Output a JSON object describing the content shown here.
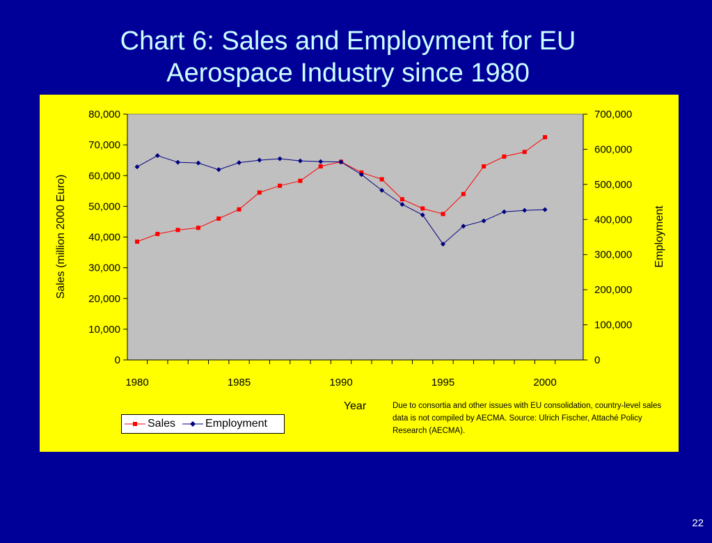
{
  "slide": {
    "title_line1": "Chart 6:  Sales and Employment for EU",
    "title_line2": "Aerospace Industry since 1980",
    "page_number": "22",
    "note": "Due to consortia and other issues with EU consolidation, country-level sales data is not compiled by AECMA.  Source: Ulrich Fischer, Attaché Policy Research (AECMA)."
  },
  "colors": {
    "background": "#000099",
    "panel": "#ffff00",
    "plot_area": "#c0c0c0",
    "sales": "#ff0000",
    "employment": "#000080",
    "title": "#ccffff"
  },
  "chart_data": {
    "type": "line",
    "title": "",
    "xlabel": "Year",
    "ylabel": "Sales (million 2000 Euro)",
    "y2label": "Employment",
    "x": [
      1980,
      1981,
      1982,
      1983,
      1984,
      1985,
      1986,
      1987,
      1988,
      1989,
      1990,
      1991,
      1992,
      1993,
      1994,
      1995,
      1996,
      1997,
      1998,
      1999,
      2000
    ],
    "x_ticks": [
      "1980",
      "1985",
      "1990",
      "1995",
      "2000"
    ],
    "ylim": [
      0,
      80000
    ],
    "y_ticks": [
      "0",
      "10,000",
      "20,000",
      "30,000",
      "40,000",
      "50,000",
      "60,000",
      "70,000",
      "80,000"
    ],
    "y2lim": [
      0,
      700000
    ],
    "y2_ticks": [
      "0",
      "100,000",
      "200,000",
      "300,000",
      "400,000",
      "500,000",
      "600,000",
      "700,000"
    ],
    "grid": false,
    "legend_position": "bottom-left",
    "series": [
      {
        "name": "Sales",
        "axis": "left",
        "marker": "square",
        "values": [
          38500,
          41000,
          42300,
          43000,
          46000,
          49000,
          54500,
          56700,
          58300,
          63000,
          64500,
          61000,
          58800,
          52300,
          49300,
          47500,
          54000,
          63000,
          66200,
          67700,
          72500
        ]
      },
      {
        "name": "Employment",
        "axis": "right",
        "marker": "diamond",
        "values": [
          550000,
          582000,
          563000,
          561000,
          542000,
          562000,
          569000,
          573000,
          567000,
          565000,
          564000,
          528000,
          483000,
          443000,
          413000,
          330000,
          381000,
          396000,
          422000,
          426000,
          428000
        ]
      }
    ]
  }
}
